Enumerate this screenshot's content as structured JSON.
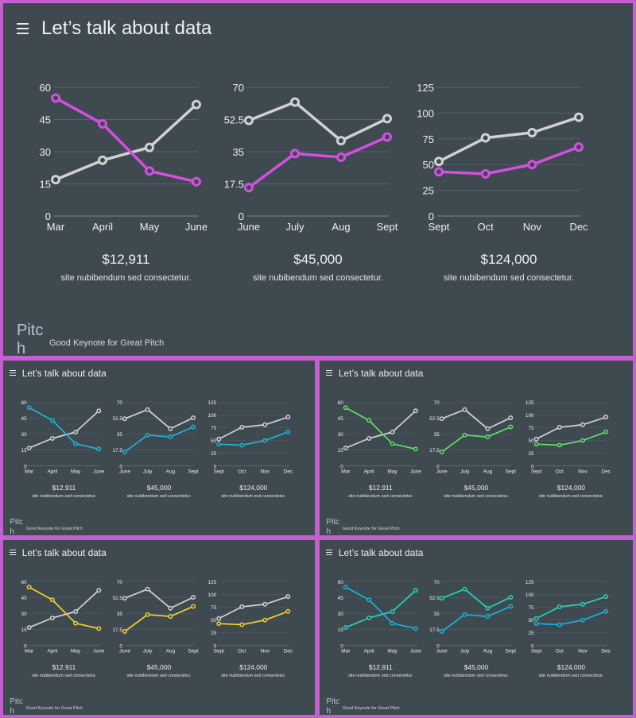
{
  "colors": {
    "frame": "#c45fd0",
    "background": "#3f4950",
    "primary_line": "#d0d2d4",
    "grid": "#56616a",
    "axis": "#7a858e",
    "text": "#eef0f2"
  },
  "slides": [
    {
      "accent": "#d54fe3"
    },
    {
      "accent": "#1fb3d6"
    },
    {
      "accent": "#5fe06a"
    },
    {
      "accent": "#f2d22a"
    },
    {
      "accent": "#27d3b8",
      "primary_color": "#27d3b8",
      "secondary_color": "#1ab2d8"
    }
  ],
  "slide": {
    "title": "Let’s talk about data",
    "menu_icon": "hamburger-menu-icon",
    "brand_line1": "Pitc",
    "brand_line2": "h",
    "tagline": "Good Keynote for Great Pitch",
    "caption": "site nubibendum sed consectetur."
  },
  "chart_data": [
    {
      "type": "line",
      "categories": [
        "Mar",
        "April",
        "May",
        "June"
      ],
      "yticks": [
        "0",
        "15",
        "30",
        "45",
        "60"
      ],
      "ylim": [
        0,
        60
      ],
      "series": [
        {
          "values": [
            17,
            26,
            32,
            52
          ]
        },
        {
          "values": [
            55,
            43,
            21,
            16
          ]
        }
      ],
      "value": "$12,911"
    },
    {
      "type": "line",
      "categories": [
        "June",
        "July",
        "Aug",
        "Sept"
      ],
      "yticks": [
        "0",
        "17.5",
        "35",
        "52.5",
        "70"
      ],
      "ylim": [
        0,
        70
      ],
      "series": [
        {
          "values": [
            52,
            62,
            41,
            53
          ]
        },
        {
          "values": [
            15.5,
            34,
            32,
            43
          ]
        }
      ],
      "value": "$45,000"
    },
    {
      "type": "line",
      "categories": [
        "Sept",
        "Oct",
        "Nov",
        "Dec"
      ],
      "yticks": [
        "0",
        "25",
        "50",
        "75",
        "100",
        "125"
      ],
      "ylim": [
        0,
        125
      ],
      "series": [
        {
          "values": [
            53,
            76,
            81,
            96
          ]
        },
        {
          "values": [
            43,
            41,
            50,
            67
          ]
        }
      ],
      "value": "$124,000"
    }
  ]
}
